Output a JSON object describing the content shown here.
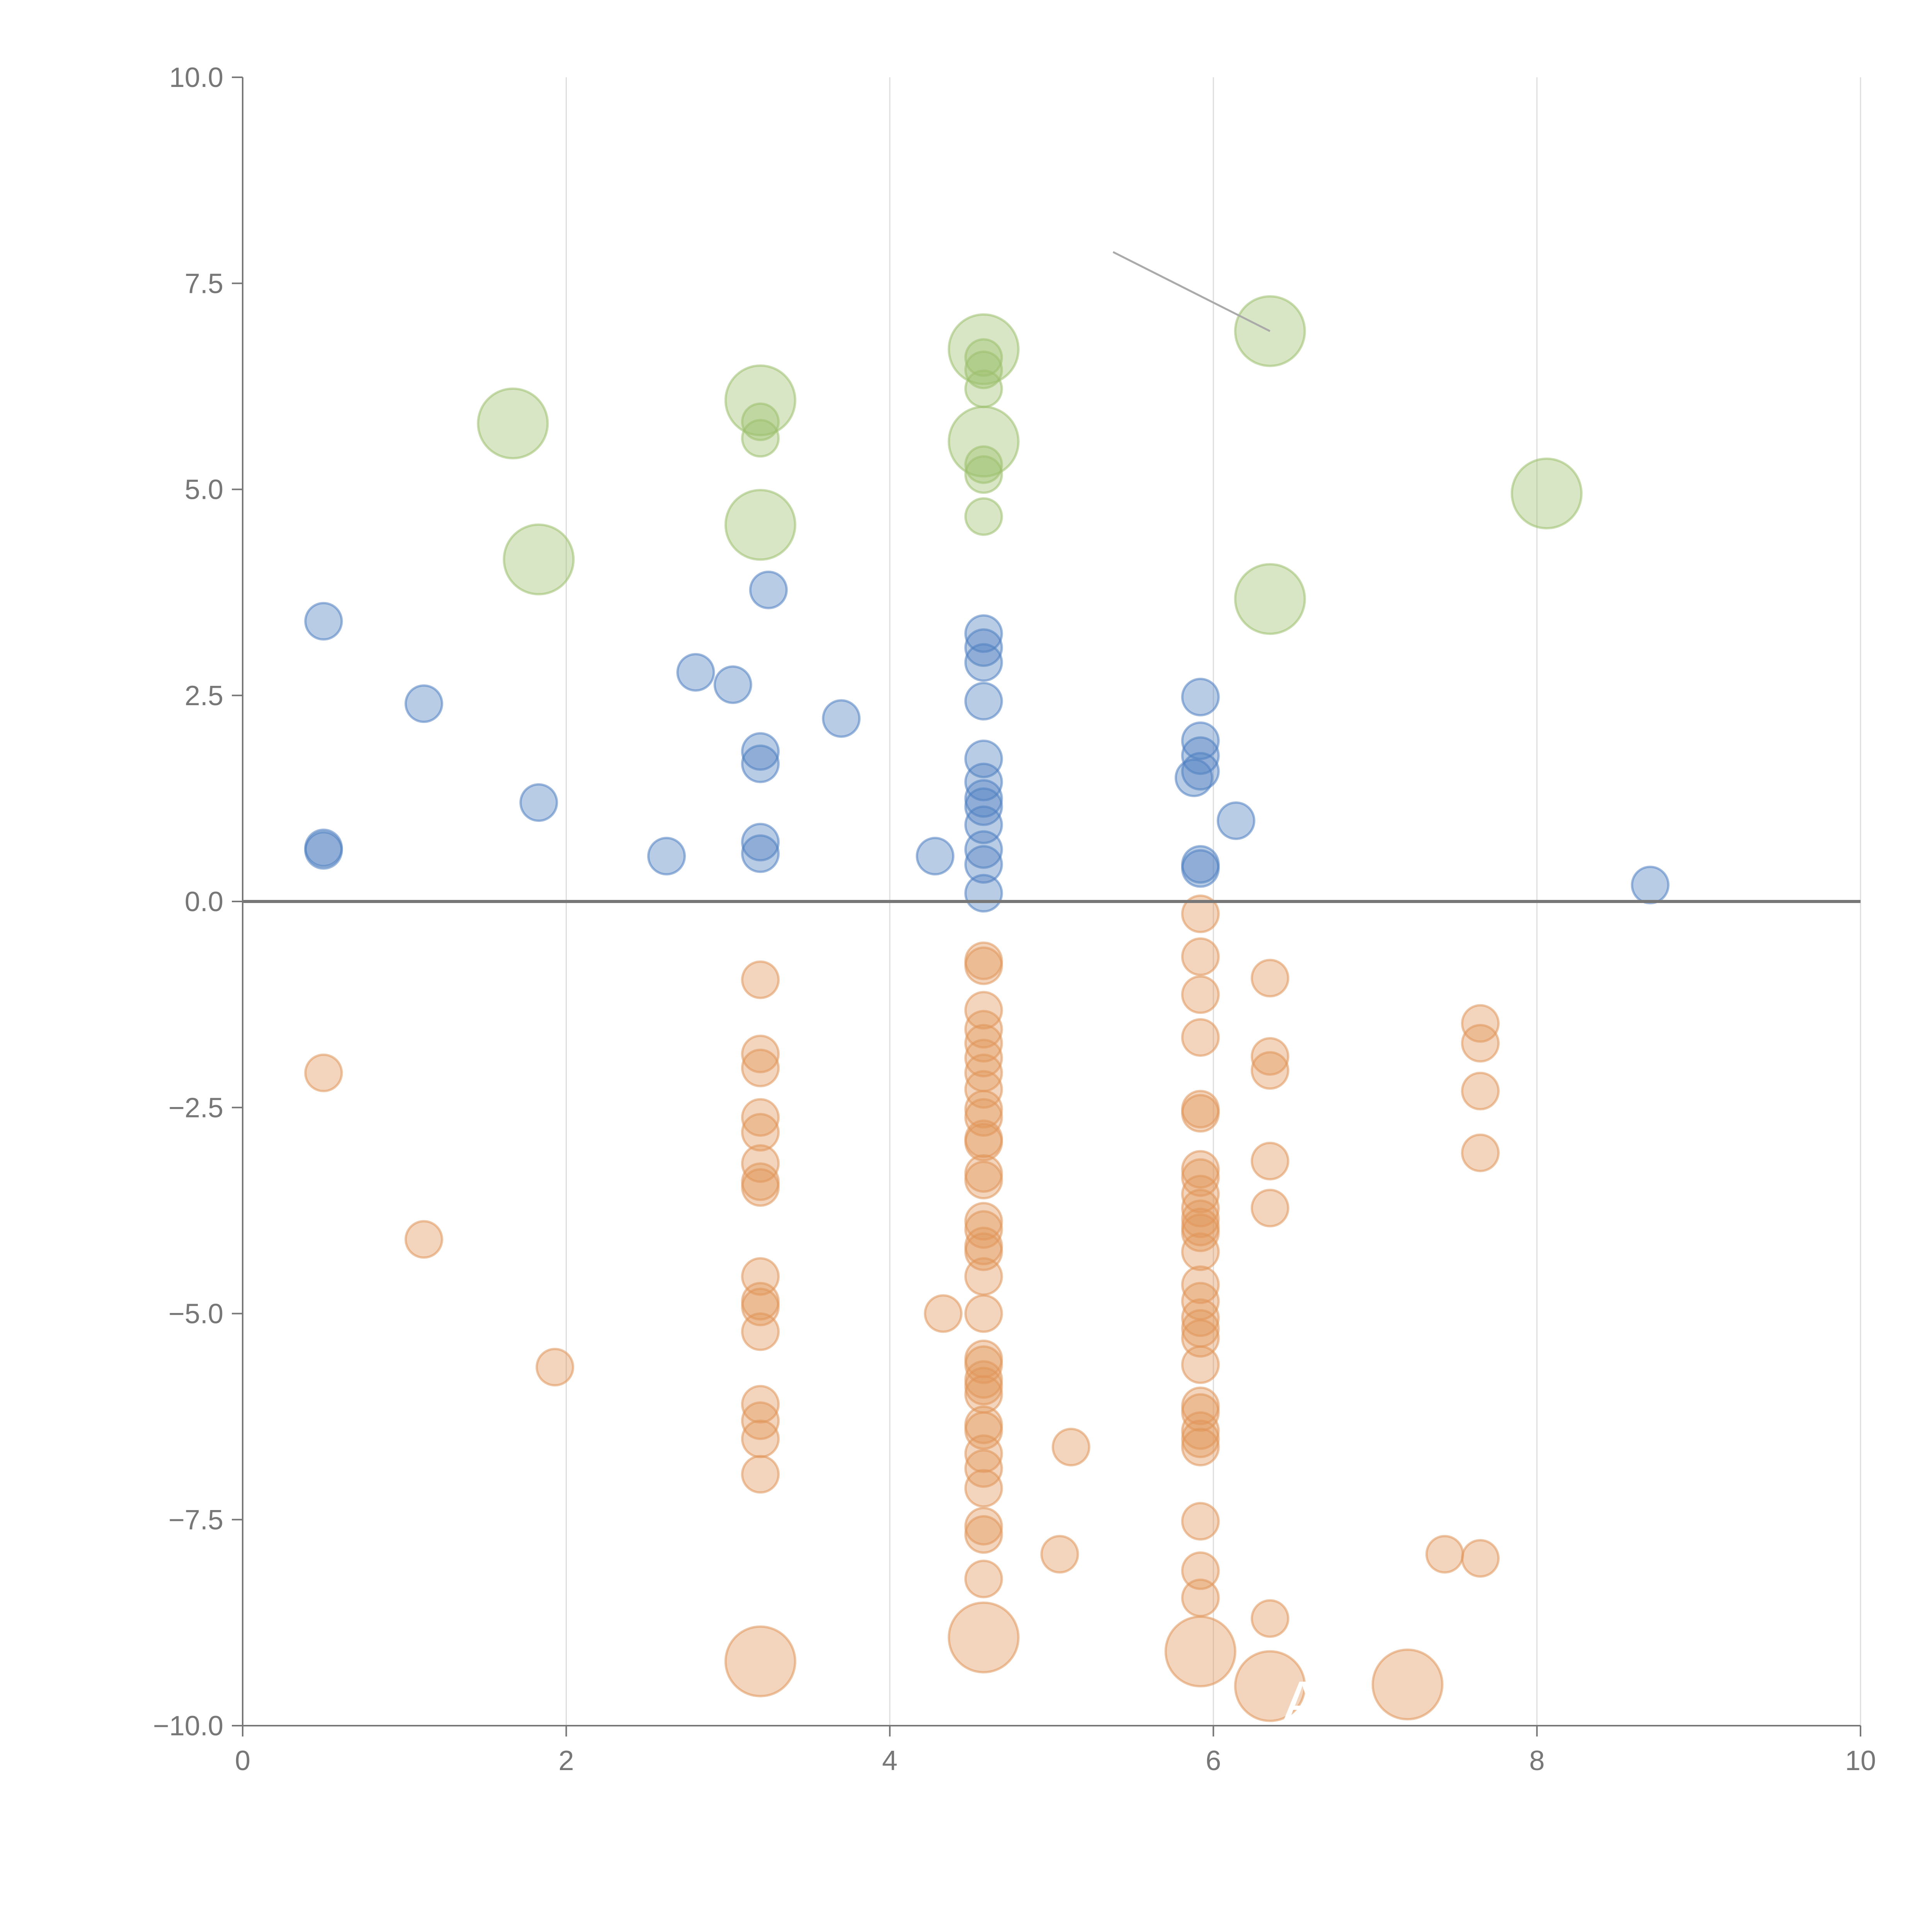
{
  "chart_data": {
    "type": "scatter",
    "title": "",
    "xlabel": "",
    "ylabel": "",
    "xlim": [
      0,
      10
    ],
    "ylim": [
      -10,
      10
    ],
    "x_ticks": [
      "0",
      "2",
      "4",
      "6",
      "8",
      "10"
    ],
    "y_ticks": [
      "10.0",
      "7.5",
      "5.0",
      "2.5",
      "0.0",
      "−2.5",
      "−5.0",
      "−7.5",
      "−10.0"
    ],
    "grid": "vertical",
    "zero_line": true,
    "annotation": "A",
    "series": [
      {
        "color": "#4f7fc1",
        "points": [
          [
            0.5,
            3.4
          ],
          [
            0.5,
            0.65
          ],
          [
            0.5,
            0.62
          ],
          [
            1.12,
            2.4
          ],
          [
            1.83,
            1.2
          ],
          [
            2.62,
            0.55
          ],
          [
            2.8,
            2.78
          ],
          [
            3.03,
            2.63
          ],
          [
            3.2,
            1.82
          ],
          [
            3.2,
            1.67
          ],
          [
            3.2,
            0.72
          ],
          [
            3.2,
            0.58
          ],
          [
            3.25,
            3.78
          ],
          [
            3.7,
            2.22
          ],
          [
            4.28,
            0.55
          ],
          [
            4.58,
            3.25
          ],
          [
            4.58,
            3.08
          ],
          [
            4.58,
            2.9
          ],
          [
            4.58,
            2.43
          ],
          [
            4.58,
            1.73
          ],
          [
            4.58,
            1.45
          ],
          [
            4.58,
            1.25
          ],
          [
            4.58,
            1.15
          ],
          [
            4.58,
            0.93
          ],
          [
            4.58,
            0.63
          ],
          [
            4.58,
            0.45
          ],
          [
            4.58,
            0.1
          ],
          [
            5.88,
            1.5
          ],
          [
            5.92,
            2.48
          ],
          [
            5.92,
            1.95
          ],
          [
            5.92,
            1.77
          ],
          [
            5.92,
            1.58
          ],
          [
            5.92,
            0.45
          ],
          [
            5.92,
            0.4
          ],
          [
            6.14,
            0.98
          ],
          [
            8.7,
            0.2
          ]
        ]
      },
      {
        "color": "#e0955a",
        "points": [
          [
            0.5,
            -2.08
          ],
          [
            1.12,
            -4.1
          ],
          [
            1.93,
            -5.65
          ],
          [
            3.2,
            -0.95
          ],
          [
            3.2,
            -1.85
          ],
          [
            3.2,
            -2.02
          ],
          [
            3.2,
            -2.62
          ],
          [
            3.2,
            -2.8
          ],
          [
            3.2,
            -3.18
          ],
          [
            3.2,
            -3.4
          ],
          [
            3.2,
            -3.47
          ],
          [
            3.2,
            -4.55
          ],
          [
            3.2,
            -4.85
          ],
          [
            3.2,
            -4.92
          ],
          [
            3.2,
            -5.22
          ],
          [
            3.2,
            -6.1
          ],
          [
            3.2,
            -6.3
          ],
          [
            3.2,
            -6.52
          ],
          [
            3.2,
            -6.95
          ],
          [
            4.33,
            -5.0
          ],
          [
            4.58,
            -0.72
          ],
          [
            4.58,
            -0.78
          ],
          [
            4.58,
            -1.32
          ],
          [
            4.58,
            -1.55
          ],
          [
            4.58,
            -1.72
          ],
          [
            4.58,
            -1.9
          ],
          [
            4.58,
            -2.08
          ],
          [
            4.58,
            -2.28
          ],
          [
            4.58,
            -2.52
          ],
          [
            4.58,
            -2.62
          ],
          [
            4.58,
            -2.88
          ],
          [
            4.58,
            -2.92
          ],
          [
            4.58,
            -3.3
          ],
          [
            4.58,
            -3.38
          ],
          [
            4.58,
            -3.88
          ],
          [
            4.58,
            -3.98
          ],
          [
            4.58,
            -4.18
          ],
          [
            4.58,
            -4.25
          ],
          [
            4.58,
            -4.55
          ],
          [
            4.58,
            -5.0
          ],
          [
            4.58,
            -5.55
          ],
          [
            4.58,
            -5.62
          ],
          [
            4.58,
            -5.8
          ],
          [
            4.58,
            -5.88
          ],
          [
            4.58,
            -5.98
          ],
          [
            4.58,
            -6.35
          ],
          [
            4.58,
            -6.42
          ],
          [
            4.58,
            -6.7
          ],
          [
            4.58,
            -6.88
          ],
          [
            4.58,
            -7.12
          ],
          [
            4.58,
            -7.58
          ],
          [
            4.58,
            -7.68
          ],
          [
            4.58,
            -8.22
          ],
          [
            5.05,
            -7.92
          ],
          [
            5.12,
            -6.62
          ],
          [
            5.92,
            -0.15
          ],
          [
            5.92,
            -0.67
          ],
          [
            5.92,
            -1.13
          ],
          [
            5.92,
            -1.65
          ],
          [
            5.92,
            -2.52
          ],
          [
            5.92,
            -2.57
          ],
          [
            5.92,
            -3.25
          ],
          [
            5.92,
            -3.35
          ],
          [
            5.92,
            -3.55
          ],
          [
            5.92,
            -3.72
          ],
          [
            5.92,
            -3.85
          ],
          [
            5.92,
            -3.95
          ],
          [
            5.92,
            -4.02
          ],
          [
            5.92,
            -4.25
          ],
          [
            5.92,
            -4.65
          ],
          [
            5.92,
            -4.85
          ],
          [
            5.92,
            -5.05
          ],
          [
            5.92,
            -5.18
          ],
          [
            5.92,
            -5.3
          ],
          [
            5.92,
            -5.62
          ],
          [
            5.92,
            -6.12
          ],
          [
            5.92,
            -6.2
          ],
          [
            5.92,
            -6.42
          ],
          [
            5.92,
            -6.52
          ],
          [
            5.92,
            -6.62
          ],
          [
            5.92,
            -7.52
          ],
          [
            5.92,
            -8.12
          ],
          [
            5.92,
            -8.45
          ],
          [
            6.35,
            -0.93
          ],
          [
            6.35,
            -1.88
          ],
          [
            6.35,
            -2.05
          ],
          [
            6.35,
            -3.15
          ],
          [
            6.35,
            -3.72
          ],
          [
            6.35,
            -8.7
          ],
          [
            7.43,
            -7.92
          ],
          [
            7.65,
            -1.48
          ],
          [
            7.65,
            -1.72
          ],
          [
            7.65,
            -2.3
          ],
          [
            7.65,
            -3.05
          ],
          [
            7.65,
            -7.97
          ]
        ]
      },
      {
        "color": "#9dc06e",
        "points": [
          [
            4.58,
            6.6
          ],
          [
            4.58,
            6.45
          ],
          [
            4.58,
            6.22
          ],
          [
            4.58,
            5.3
          ],
          [
            4.58,
            5.18
          ],
          [
            4.58,
            4.67
          ],
          [
            3.2,
            5.82
          ],
          [
            3.2,
            5.62
          ]
        ]
      }
    ],
    "large_points": [
      {
        "x": 1.67,
        "y": 5.8,
        "color": "#9dc06e"
      },
      {
        "x": 1.83,
        "y": 4.15,
        "color": "#9dc06e"
      },
      {
        "x": 3.2,
        "y": 6.08,
        "color": "#9dc06e"
      },
      {
        "x": 3.2,
        "y": 4.57,
        "color": "#9dc06e"
      },
      {
        "x": 4.58,
        "y": 6.7,
        "color": "#9dc06e"
      },
      {
        "x": 4.58,
        "y": 5.58,
        "color": "#9dc06e"
      },
      {
        "x": 6.35,
        "y": 6.92,
        "color": "#9dc06e"
      },
      {
        "x": 6.35,
        "y": 3.67,
        "color": "#9dc06e"
      },
      {
        "x": 8.06,
        "y": 4.95,
        "color": "#9dc06e"
      },
      {
        "x": 3.2,
        "y": -9.22,
        "color": "#e0955a"
      },
      {
        "x": 4.58,
        "y": -8.93,
        "color": "#e0955a"
      },
      {
        "x": 5.92,
        "y": -9.1,
        "color": "#e0955a"
      },
      {
        "x": 6.35,
        "y": -9.52,
        "color": "#e0955a"
      },
      {
        "x": 7.2,
        "y": -9.5,
        "color": "#e0955a"
      }
    ]
  }
}
